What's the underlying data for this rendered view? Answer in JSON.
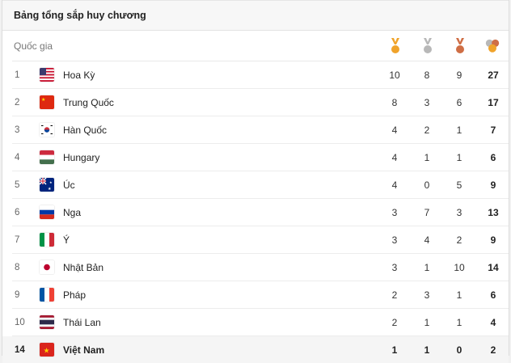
{
  "header": {
    "title": "Bảng tổng sắp huy chương"
  },
  "columns": {
    "country": "Quốc gia",
    "gold_icon": "gold-medal-icon",
    "silver_icon": "silver-medal-icon",
    "bronze_icon": "bronze-medal-icon",
    "total_icon": "total-medals-icon"
  },
  "colors": {
    "gold": "#f0a32a",
    "silver": "#b8b8b8",
    "bronze": "#cf6e45"
  },
  "rows": [
    {
      "rank": "1",
      "country": "Hoa Kỳ",
      "flag": "us-flag",
      "gold": "10",
      "silver": "8",
      "bronze": "9",
      "total": "27"
    },
    {
      "rank": "2",
      "country": "Trung Quốc",
      "flag": "china-flag",
      "gold": "8",
      "silver": "3",
      "bronze": "6",
      "total": "17"
    },
    {
      "rank": "3",
      "country": "Hàn Quốc",
      "flag": "south-korea-flag",
      "gold": "4",
      "silver": "2",
      "bronze": "1",
      "total": "7"
    },
    {
      "rank": "4",
      "country": "Hungary",
      "flag": "hungary-flag",
      "gold": "4",
      "silver": "1",
      "bronze": "1",
      "total": "6"
    },
    {
      "rank": "5",
      "country": "Úc",
      "flag": "australia-flag",
      "gold": "4",
      "silver": "0",
      "bronze": "5",
      "total": "9"
    },
    {
      "rank": "6",
      "country": "Nga",
      "flag": "russia-flag",
      "gold": "3",
      "silver": "7",
      "bronze": "3",
      "total": "13"
    },
    {
      "rank": "7",
      "country": "Ý",
      "flag": "italy-flag",
      "gold": "3",
      "silver": "4",
      "bronze": "2",
      "total": "9"
    },
    {
      "rank": "8",
      "country": "Nhật Bản",
      "flag": "japan-flag",
      "gold": "3",
      "silver": "1",
      "bronze": "10",
      "total": "14"
    },
    {
      "rank": "9",
      "country": "Pháp",
      "flag": "france-flag",
      "gold": "2",
      "silver": "3",
      "bronze": "1",
      "total": "6"
    },
    {
      "rank": "10",
      "country": "Thái Lan",
      "flag": "thailand-flag",
      "gold": "2",
      "silver": "1",
      "bronze": "1",
      "total": "4"
    },
    {
      "rank": "14",
      "country": "Việt Nam",
      "flag": "vietnam-flag",
      "gold": "1",
      "silver": "1",
      "bronze": "0",
      "total": "2",
      "highlight": true
    }
  ]
}
